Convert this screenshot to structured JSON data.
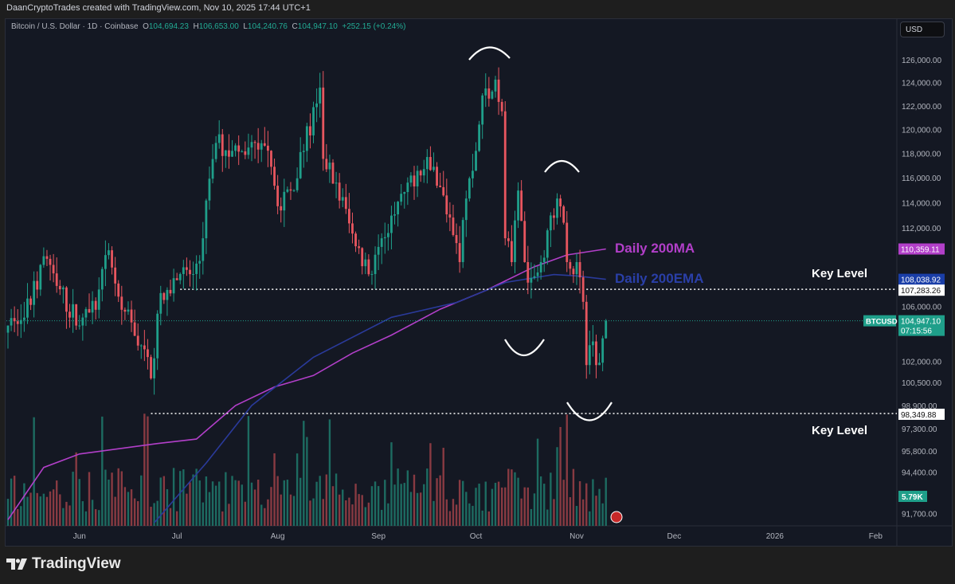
{
  "header": {
    "credit": "DaanCryptoTrades created with TradingView.com, Nov 10, 2025 17:44 UTC+1"
  },
  "legend": {
    "symbol": "Bitcoin / U.S. Dollar · 1D · Coinbase",
    "o_label": "O",
    "o": "104,694.23",
    "h_label": "H",
    "h": "106,653.00",
    "l_label": "L",
    "l": "104,240.76",
    "c_label": "C",
    "c": "104,947.10",
    "change": "+252.15 (+0.24%)"
  },
  "currency_button": "USD",
  "brand": "TradingView",
  "colors": {
    "up": "#1f9f8a",
    "down": "#e8565f",
    "ma": "#b23fc9",
    "ema": "#2a3a9a",
    "background": "#141823"
  },
  "chart_data": {
    "type": "candlestick",
    "yscale": "log",
    "ylim": [
      91000,
      128000
    ],
    "y_ticks": [
      "126,000.00",
      "124,000.00",
      "122,000.00",
      "120,000.00",
      "118,000.00",
      "116,000.00",
      "114,000.00",
      "112,000.00",
      "106,000.00",
      "102,000.00",
      "100,500.00",
      "98,900.00",
      "97,300.00",
      "95,800.00",
      "94,400.00",
      "91,700.00"
    ],
    "y_tick_values": [
      126000,
      124000,
      122000,
      120000,
      118000,
      116000,
      114000,
      112000,
      106000,
      102000,
      100500,
      98900,
      97300,
      95800,
      94400,
      91700
    ],
    "x_ticks": [
      {
        "label": "Jun",
        "date": "2025-06-01"
      },
      {
        "label": "Jul",
        "date": "2025-07-01"
      },
      {
        "label": "Aug",
        "date": "2025-08-01"
      },
      {
        "label": "Sep",
        "date": "2025-09-01"
      },
      {
        "label": "Oct",
        "date": "2025-10-01"
      },
      {
        "label": "Nov",
        "date": "2025-11-01"
      },
      {
        "label": "Dec",
        "date": "2025-12-01"
      },
      {
        "label": "2026",
        "date": "2026-01-01"
      },
      {
        "label": "Feb",
        "date": "2026-02-01"
      }
    ],
    "x_start": "2025-05-10",
    "close_path": [
      [
        "2025-05-10",
        104600
      ],
      [
        "2025-05-15",
        105180
      ],
      [
        "2025-05-22",
        109600
      ],
      [
        "2025-05-25",
        107540
      ],
      [
        "2025-06-01",
        104600
      ],
      [
        "2025-06-06",
        105760
      ],
      [
        "2025-06-10",
        110260
      ],
      [
        "2025-06-14",
        105760
      ],
      [
        "2025-06-21",
        102870
      ],
      [
        "2025-06-23",
        100800
      ],
      [
        "2025-06-25",
        105470
      ],
      [
        "2025-06-28",
        107240
      ],
      [
        "2025-07-02",
        108440
      ],
      [
        "2025-07-06",
        108440
      ],
      [
        "2025-07-09",
        111190
      ],
      [
        "2025-07-11",
        115930
      ],
      [
        "2025-07-13",
        118870
      ],
      [
        "2025-07-18",
        118210
      ],
      [
        "2025-07-22",
        117880
      ],
      [
        "2025-07-25",
        118870
      ],
      [
        "2025-07-30",
        116900
      ],
      [
        "2025-08-02",
        113380
      ],
      [
        "2025-08-05",
        114970
      ],
      [
        "2025-08-09",
        118210
      ],
      [
        "2025-08-13",
        122200
      ],
      [
        "2025-08-14",
        123570
      ],
      [
        "2025-08-15",
        117550
      ],
      [
        "2025-08-19",
        115610
      ],
      [
        "2025-08-25",
        110570
      ],
      [
        "2025-08-30",
        108440
      ],
      [
        "2025-09-02",
        111190
      ],
      [
        "2025-09-06",
        113070
      ],
      [
        "2025-09-10",
        115610
      ],
      [
        "2025-09-13",
        116570
      ],
      [
        "2025-09-18",
        116900
      ],
      [
        "2025-09-22",
        113070
      ],
      [
        "2025-09-26",
        109350
      ],
      [
        "2025-09-28",
        114330
      ],
      [
        "2025-10-01",
        118210
      ],
      [
        "2025-10-03",
        122890
      ],
      [
        "2025-10-06",
        123230
      ],
      [
        "2025-10-07",
        124260
      ],
      [
        "2025-10-09",
        121530
      ],
      [
        "2025-10-10",
        111190
      ],
      [
        "2025-10-12",
        109350
      ],
      [
        "2025-10-14",
        114970
      ],
      [
        "2025-10-16",
        109350
      ],
      [
        "2025-10-18",
        108140
      ],
      [
        "2025-10-21",
        109350
      ],
      [
        "2025-10-23",
        111810
      ],
      [
        "2025-10-26",
        114330
      ],
      [
        "2025-10-27",
        113700
      ],
      [
        "2025-10-29",
        109350
      ],
      [
        "2025-11-01",
        109350
      ],
      [
        "2025-11-03",
        106350
      ],
      [
        "2025-11-04",
        101740
      ],
      [
        "2025-11-06",
        103440
      ],
      [
        "2025-11-07",
        101740
      ],
      [
        "2025-11-10",
        104947.1
      ]
    ],
    "series": [
      {
        "name": "Daily 200MA",
        "color": "#b23fc9",
        "last": "110,359.11",
        "path": [
          [
            "2025-05-10",
            91300
          ],
          [
            "2025-05-21",
            94700
          ],
          [
            "2025-06-01",
            95600
          ],
          [
            "2025-06-25",
            96300
          ],
          [
            "2025-07-07",
            96600
          ],
          [
            "2025-07-19",
            98900
          ],
          [
            "2025-07-31",
            100200
          ],
          [
            "2025-08-12",
            101000
          ],
          [
            "2025-08-24",
            102600
          ],
          [
            "2025-09-05",
            103900
          ],
          [
            "2025-09-20",
            105800
          ],
          [
            "2025-10-04",
            107200
          ],
          [
            "2025-10-19",
            109000
          ],
          [
            "2025-10-29",
            109900
          ],
          [
            "2025-11-10",
            110359.11
          ]
        ]
      },
      {
        "name": "Daily 200EMA",
        "color": "#2a3a9a",
        "last": "108,038.92",
        "path": [
          [
            "2025-06-24",
            91100
          ],
          [
            "2025-07-10",
            95000
          ],
          [
            "2025-07-24",
            98900
          ],
          [
            "2025-08-12",
            102300
          ],
          [
            "2025-09-05",
            105200
          ],
          [
            "2025-09-25",
            106300
          ],
          [
            "2025-10-10",
            107800
          ],
          [
            "2025-10-25",
            108400
          ],
          [
            "2025-11-01",
            108300
          ],
          [
            "2025-11-10",
            108038.92
          ]
        ]
      }
    ],
    "key_levels": [
      {
        "label": "Key Level",
        "value": 107283.26,
        "text": "107,283.26",
        "from": "2025-07-02"
      },
      {
        "label": "Key Level",
        "value": 98349.88,
        "text": "98,349.88",
        "from": "2025-06-23"
      }
    ],
    "last_price": {
      "symbol": "BTCUSD",
      "value": 104947.1,
      "text": "104,947.10",
      "countdown": "07:15:56"
    },
    "volume_last": "5.79K",
    "annotations": [
      {
        "text": "Daily 200MA"
      },
      {
        "text": "Daily 200EMA"
      }
    ]
  }
}
